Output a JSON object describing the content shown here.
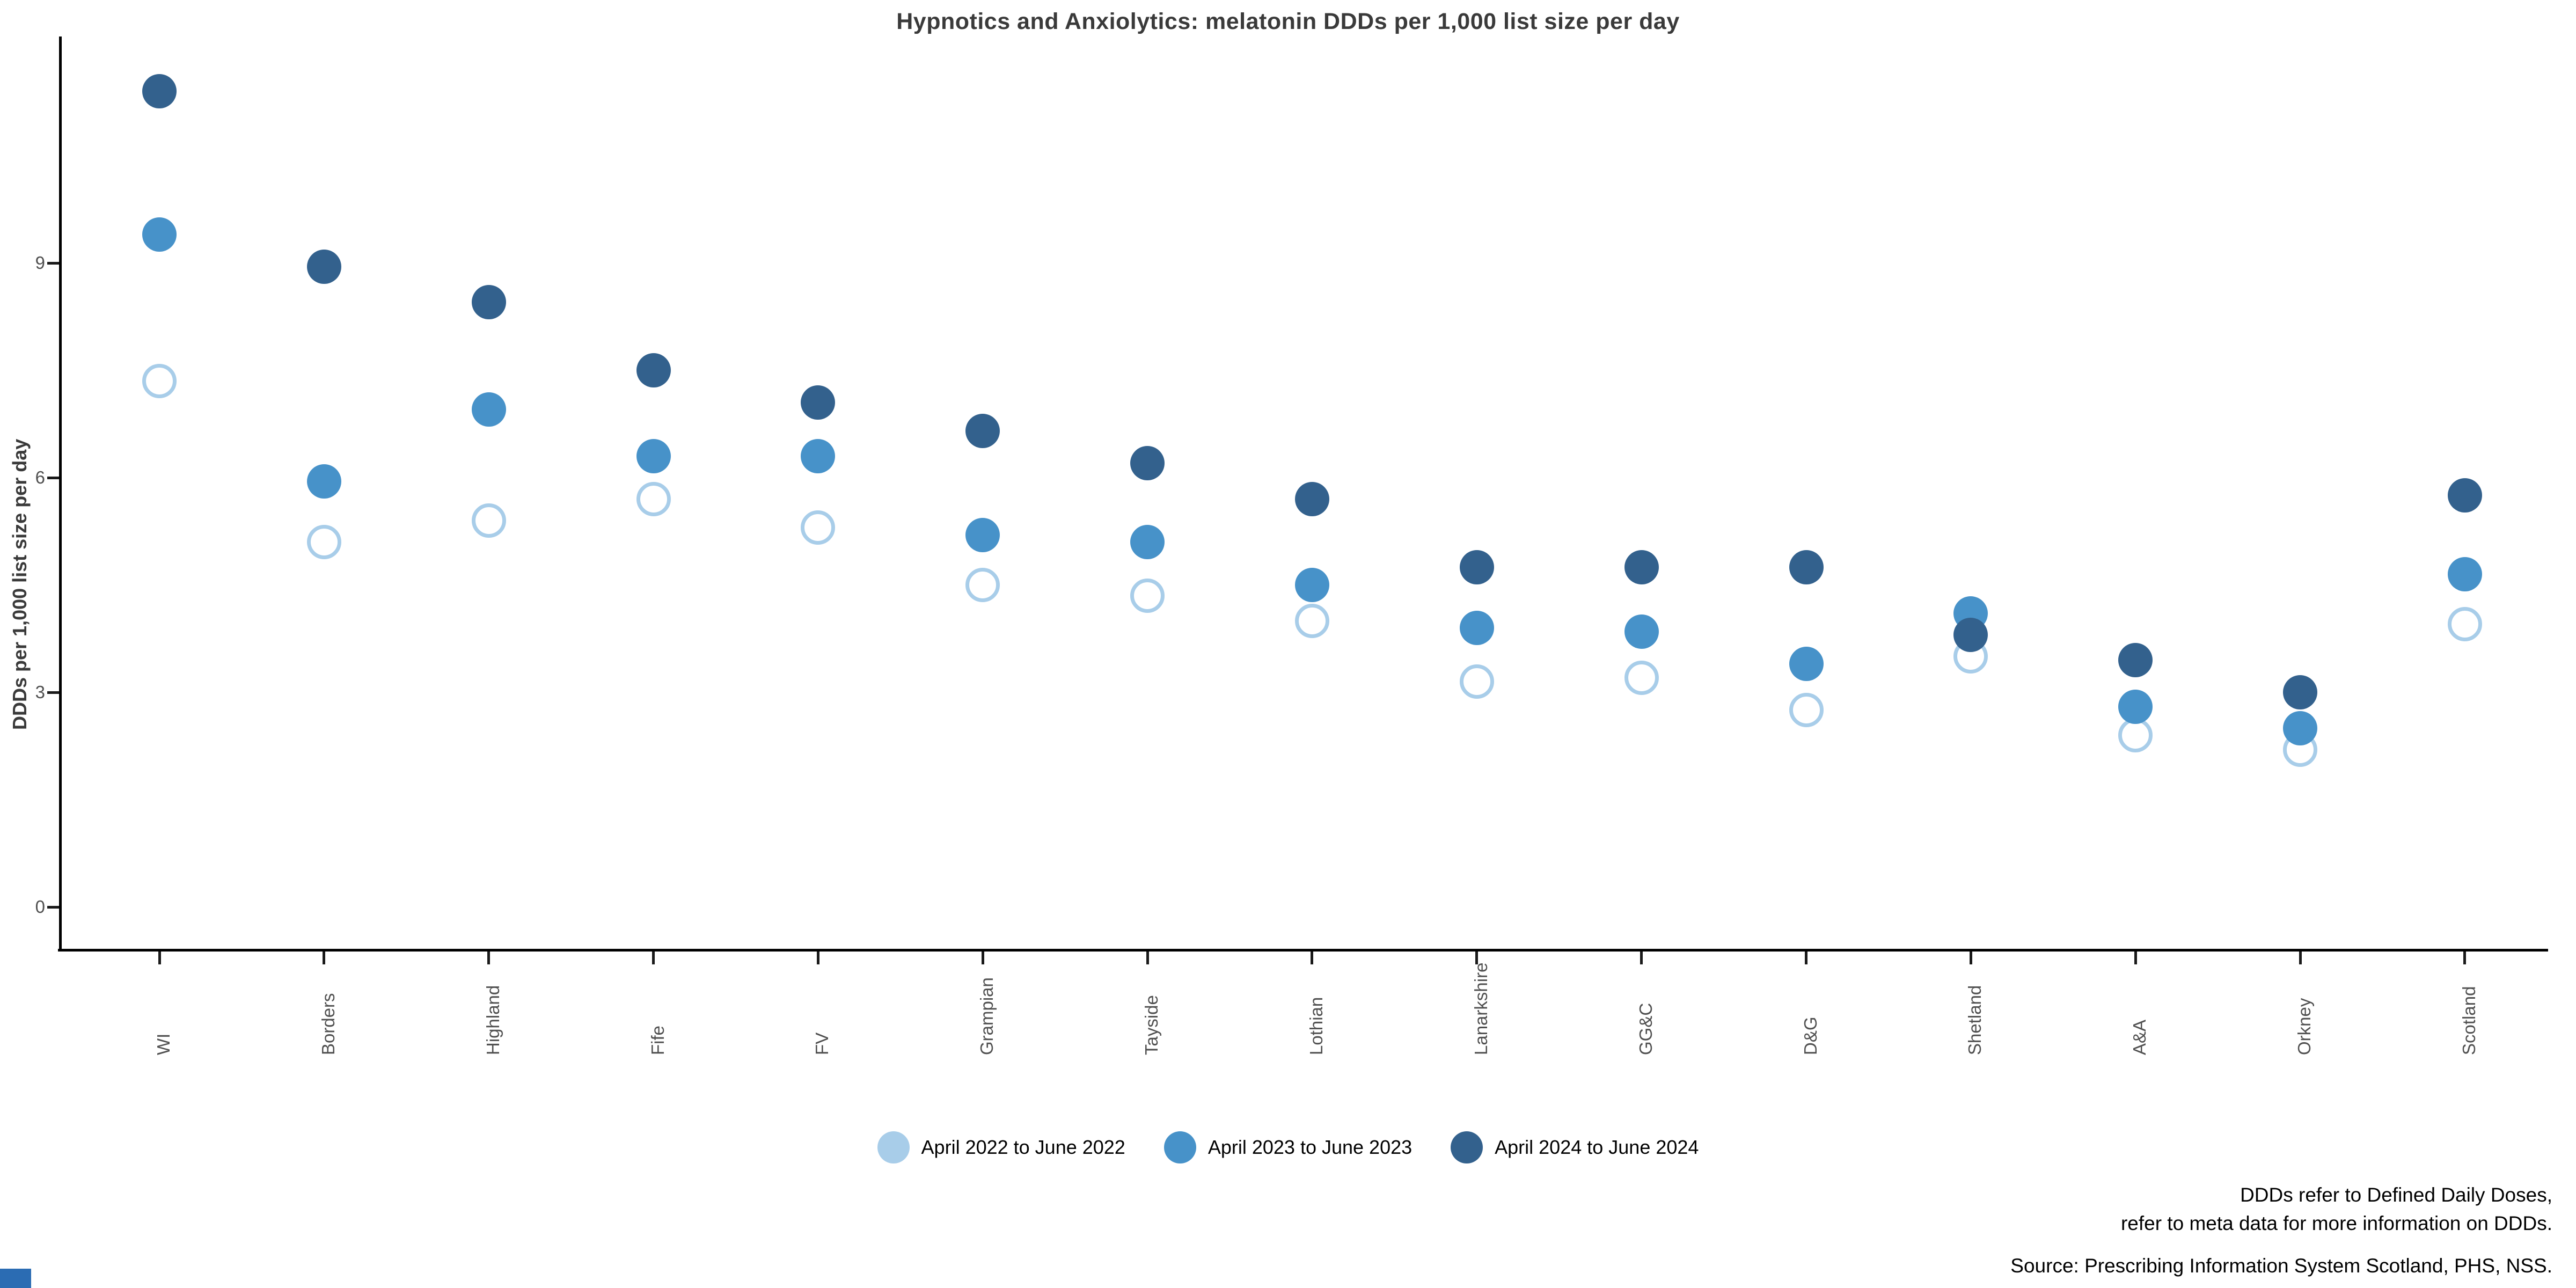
{
  "title": "Hypnotics and Anxiolytics: melatonin DDDs per 1,000 list size per day",
  "y_axis": {
    "label": "DDDs per 1,000 list size per day",
    "ticks": [
      0,
      3,
      6,
      9
    ]
  },
  "legend": [
    {
      "label": "April 2022 to June 2022",
      "color": "#a8cde9"
    },
    {
      "label": "April 2023 to June 2023",
      "color": "#4792c9"
    },
    {
      "label": "April 2024 to June 2024",
      "color": "#33618d"
    }
  ],
  "footnotes": {
    "line1": "DDDs refer to Defined Daily Doses,",
    "line2": "refer to meta data for more information on DDDs.",
    "source": "Source: Prescribing Information System Scotland, PHS, NSS."
  },
  "colors": {
    "series_2022": "#a8cde9",
    "series_2023": "#4792c9",
    "series_2024": "#33618d",
    "corner_mark": "#2b6cb3",
    "axis": "#000000",
    "tick_text": "#4f4f4f"
  },
  "chart_data": {
    "type": "scatter",
    "categories": [
      "WI",
      "Borders",
      "Highland",
      "Fife",
      "FV",
      "Grampian",
      "Tayside",
      "Lothian",
      "Lanarkshire",
      "GG&C",
      "D&G",
      "Shetland",
      "A&A",
      "Orkney",
      "Scotland"
    ],
    "series": [
      {
        "name": "April 2022 to June 2022",
        "style": "open",
        "color": "#a8cde9",
        "values": [
          7.35,
          5.1,
          5.4,
          5.7,
          5.3,
          4.5,
          4.35,
          4.0,
          3.15,
          3.2,
          2.75,
          3.5,
          2.4,
          2.2,
          3.95
        ]
      },
      {
        "name": "April 2023 to June 2023",
        "style": "filled",
        "color": "#4792c9",
        "values": [
          9.4,
          5.95,
          6.95,
          6.3,
          6.3,
          5.2,
          5.1,
          4.5,
          3.9,
          3.85,
          3.4,
          4.1,
          2.8,
          2.5,
          4.65
        ]
      },
      {
        "name": "April 2024 to June 2024",
        "style": "filled",
        "color": "#33618d",
        "values": [
          11.4,
          8.95,
          8.45,
          7.5,
          7.05,
          6.65,
          6.2,
          5.7,
          4.75,
          4.75,
          4.75,
          3.8,
          3.45,
          3.0,
          5.75
        ]
      }
    ],
    "title": "Hypnotics and Anxiolytics: melatonin DDDs per 1,000 list size per day",
    "xlabel": "",
    "ylabel": "DDDs per 1,000 list size per day",
    "ylim": [
      0,
      12
    ],
    "grid": false,
    "legend_position": "bottom"
  }
}
